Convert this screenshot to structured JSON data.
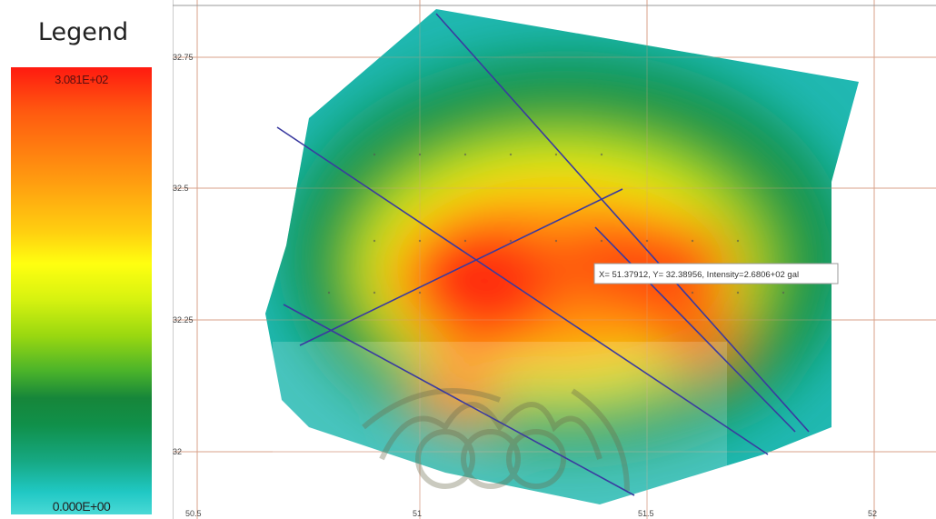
{
  "legend": {
    "title": "Legend",
    "max_label": "3.081E+02",
    "min_label": "0.000E+00"
  },
  "axes": {
    "x_ticks": [
      "50.5",
      "51",
      "51.5",
      "52"
    ],
    "y_ticks": [
      "32.75",
      "32.5",
      "32.25",
      "32"
    ]
  },
  "tooltip": {
    "text": "X= 51.37912, Y= 32.38956, Intensity=2.6806+02 gal"
  },
  "colors": {
    "high": "#ff1a10",
    "mid": "#ffff10",
    "low": "#16863a",
    "min": "#4ad9d6",
    "grid": "#d8a28a",
    "lines": "#3a3aa0"
  }
}
